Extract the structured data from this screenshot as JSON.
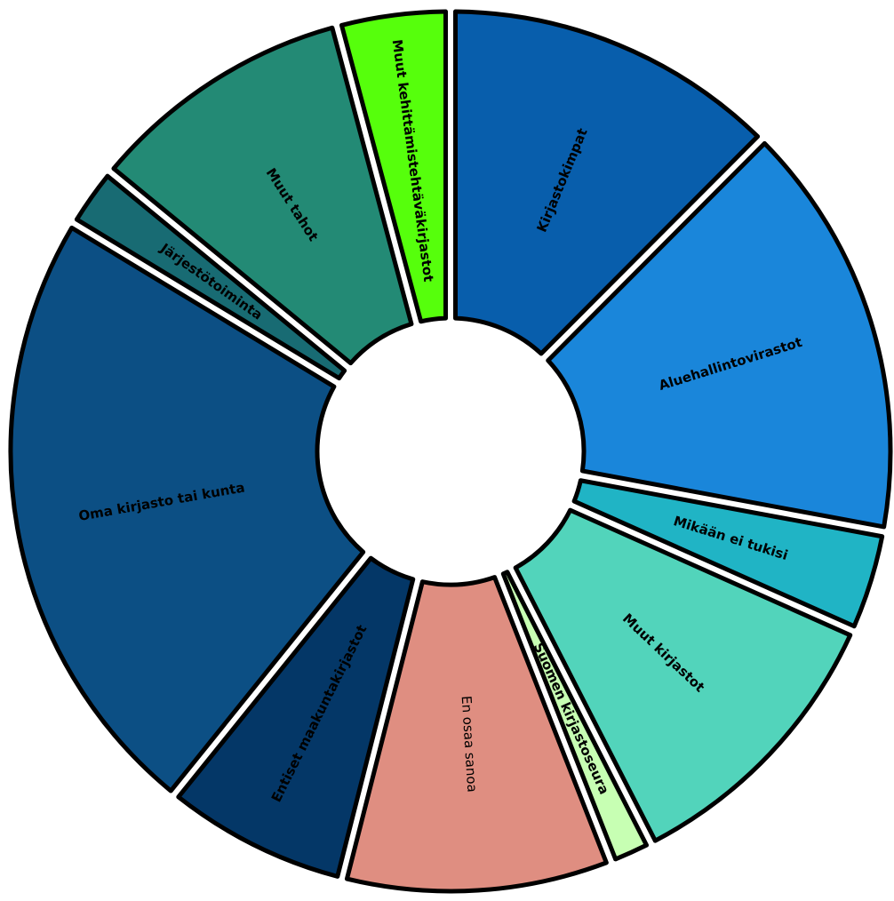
{
  "chart_data": {
    "type": "pie",
    "variant": "donut",
    "categories": [
      "Kirjastokimpat",
      "Aluehallintovirastot",
      "Mikään ei tukisi",
      "Muut kirjastot",
      "Suomen kirjastoseura",
      "En osaa sanoa",
      "Entiset maakuntakirjastot",
      "Oma kirjasto tai kunta",
      "Järjestötoiminta",
      "Muut tahot",
      "Muut kehittämistehtäväkirjastot"
    ],
    "values": [
      12.6,
      15.6,
      3.8,
      10.9,
      1.6,
      10.0,
      6.9,
      23.1,
      2.3,
      10.0,
      4.2
    ],
    "colors": [
      "#085eac",
      "#1a86da",
      "#20b4c5",
      "#52d4bb",
      "#c7ffb3",
      "#df8e81",
      "#043767",
      "#0c4f84",
      "#186b73",
      "#238a75",
      "#56ff0c"
    ],
    "label_styles": [
      "bold",
      "bold",
      "bold",
      "bold",
      "bold",
      "light",
      "bold",
      "bold",
      "bold",
      "bold",
      "bold"
    ],
    "start_angle_deg": 0,
    "direction": "clockwise",
    "legend": "none"
  }
}
